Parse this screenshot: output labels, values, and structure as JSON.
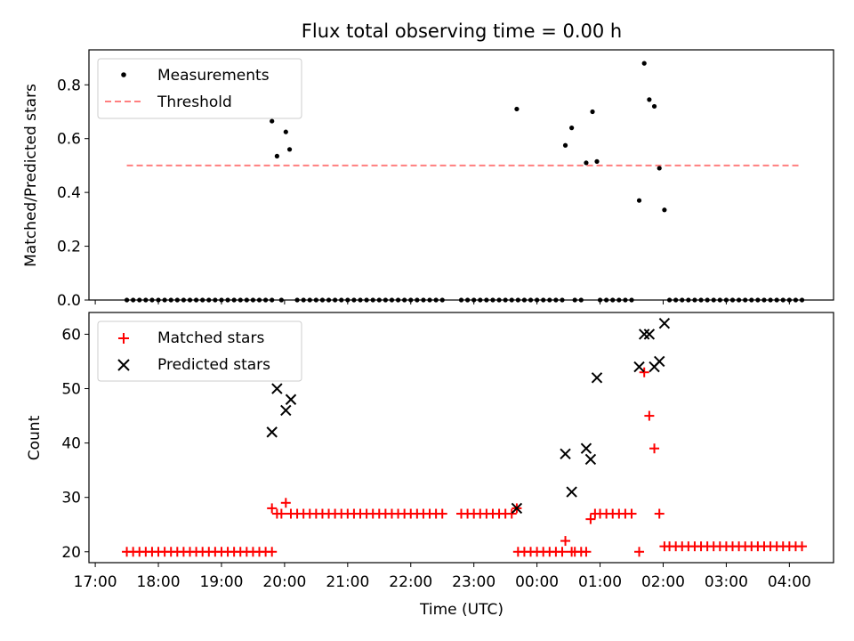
{
  "figure": {
    "title": "Flux total observing time = 0.00 h"
  },
  "chart_data": [
    {
      "type": "scatter",
      "title": "Flux total observing time = 0.00 h",
      "xlabel": "",
      "ylabel": "Matched/Predicted stars",
      "x_unit": "hours after 17:00 UTC",
      "xlim": [
        -0.1,
        11.7
      ],
      "ylim": [
        0.0,
        0.93
      ],
      "yticks": [
        "0.0",
        "0.2",
        "0.4",
        "0.6",
        "0.8"
      ],
      "grid": false,
      "legend_position": "upper-left",
      "threshold": {
        "name": "Threshold",
        "value": 0.5,
        "x_range": [
          0.5,
          11.2
        ],
        "color": "#ff7f7f"
      },
      "series": [
        {
          "name": "Measurements",
          "marker": "dot",
          "color": "#000000",
          "points": [
            [
              0.5,
              0
            ],
            [
              0.6,
              0
            ],
            [
              0.7,
              0
            ],
            [
              0.8,
              0
            ],
            [
              0.9,
              0
            ],
            [
              1.0,
              0
            ],
            [
              1.1,
              0
            ],
            [
              1.2,
              0
            ],
            [
              1.3,
              0
            ],
            [
              1.4,
              0
            ],
            [
              1.5,
              0
            ],
            [
              1.6,
              0
            ],
            [
              1.7,
              0
            ],
            [
              1.8,
              0
            ],
            [
              1.9,
              0
            ],
            [
              2.0,
              0
            ],
            [
              2.1,
              0
            ],
            [
              2.2,
              0
            ],
            [
              2.3,
              0
            ],
            [
              2.4,
              0
            ],
            [
              2.5,
              0
            ],
            [
              2.6,
              0
            ],
            [
              2.7,
              0
            ],
            [
              2.8,
              0
            ],
            [
              2.8,
              0.665
            ],
            [
              2.88,
              0.535
            ],
            [
              2.95,
              0
            ],
            [
              3.02,
              0.625
            ],
            [
              3.08,
              0.56
            ],
            [
              3.2,
              0
            ],
            [
              3.3,
              0
            ],
            [
              3.4,
              0
            ],
            [
              3.5,
              0
            ],
            [
              3.6,
              0
            ],
            [
              3.7,
              0
            ],
            [
              3.8,
              0
            ],
            [
              3.9,
              0
            ],
            [
              4.0,
              0
            ],
            [
              4.1,
              0
            ],
            [
              4.2,
              0
            ],
            [
              4.3,
              0
            ],
            [
              4.4,
              0
            ],
            [
              4.5,
              0
            ],
            [
              4.6,
              0
            ],
            [
              4.7,
              0
            ],
            [
              4.8,
              0
            ],
            [
              4.9,
              0
            ],
            [
              5.0,
              0
            ],
            [
              5.1,
              0
            ],
            [
              5.2,
              0
            ],
            [
              5.3,
              0
            ],
            [
              5.4,
              0
            ],
            [
              5.5,
              0
            ],
            [
              5.8,
              0
            ],
            [
              5.9,
              0
            ],
            [
              6.0,
              0
            ],
            [
              6.1,
              0
            ],
            [
              6.2,
              0
            ],
            [
              6.3,
              0
            ],
            [
              6.4,
              0
            ],
            [
              6.5,
              0
            ],
            [
              6.6,
              0
            ],
            [
              6.7,
              0
            ],
            [
              6.68,
              0.71
            ],
            [
              6.8,
              0
            ],
            [
              6.9,
              0
            ],
            [
              7.0,
              0
            ],
            [
              7.1,
              0
            ],
            [
              7.2,
              0
            ],
            [
              7.3,
              0
            ],
            [
              7.4,
              0
            ],
            [
              7.45,
              0.575
            ],
            [
              7.55,
              0.64
            ],
            [
              7.6,
              0
            ],
            [
              7.7,
              0
            ],
            [
              7.78,
              0.51
            ],
            [
              7.88,
              0.7
            ],
            [
              7.95,
              0.515
            ],
            [
              8.0,
              0
            ],
            [
              8.1,
              0
            ],
            [
              8.2,
              0
            ],
            [
              8.3,
              0
            ],
            [
              8.4,
              0
            ],
            [
              8.5,
              0
            ],
            [
              8.62,
              0.37
            ],
            [
              8.7,
              0.88
            ],
            [
              8.78,
              0.745
            ],
            [
              8.86,
              0.72
            ],
            [
              8.94,
              0.49
            ],
            [
              9.02,
              0.335
            ],
            [
              9.1,
              0
            ],
            [
              9.2,
              0
            ],
            [
              9.3,
              0
            ],
            [
              9.4,
              0
            ],
            [
              9.5,
              0
            ],
            [
              9.6,
              0
            ],
            [
              9.7,
              0
            ],
            [
              9.8,
              0
            ],
            [
              9.9,
              0
            ],
            [
              10.0,
              0
            ],
            [
              10.1,
              0
            ],
            [
              10.2,
              0
            ],
            [
              10.3,
              0
            ],
            [
              10.4,
              0
            ],
            [
              10.5,
              0
            ],
            [
              10.6,
              0
            ],
            [
              10.7,
              0
            ],
            [
              10.8,
              0
            ],
            [
              10.9,
              0
            ],
            [
              11.0,
              0
            ],
            [
              11.1,
              0
            ],
            [
              11.2,
              0
            ]
          ]
        }
      ]
    },
    {
      "type": "scatter",
      "title": "",
      "xlabel": "Time (UTC)",
      "ylabel": "Count",
      "x_unit": "hours after 17:00 UTC",
      "xlim": [
        -0.1,
        11.7
      ],
      "ylim": [
        18,
        64
      ],
      "yticks": [
        "20",
        "30",
        "40",
        "50",
        "60"
      ],
      "xticks": [
        "17:00",
        "18:00",
        "19:00",
        "20:00",
        "21:00",
        "22:00",
        "23:00",
        "00:00",
        "01:00",
        "02:00",
        "03:00",
        "04:00"
      ],
      "xtick_values": [
        0,
        1,
        2,
        3,
        4,
        5,
        6,
        7,
        8,
        9,
        10,
        11
      ],
      "grid": false,
      "legend_position": "upper-left",
      "series": [
        {
          "name": "Matched stars",
          "marker": "plus",
          "color": "#ff0000",
          "points": [
            [
              0.5,
              20
            ],
            [
              0.6,
              20
            ],
            [
              0.7,
              20
            ],
            [
              0.8,
              20
            ],
            [
              0.9,
              20
            ],
            [
              1.0,
              20
            ],
            [
              1.1,
              20
            ],
            [
              1.2,
              20
            ],
            [
              1.3,
              20
            ],
            [
              1.4,
              20
            ],
            [
              1.5,
              20
            ],
            [
              1.6,
              20
            ],
            [
              1.7,
              20
            ],
            [
              1.8,
              20
            ],
            [
              1.9,
              20
            ],
            [
              2.0,
              20
            ],
            [
              2.1,
              20
            ],
            [
              2.2,
              20
            ],
            [
              2.3,
              20
            ],
            [
              2.4,
              20
            ],
            [
              2.5,
              20
            ],
            [
              2.6,
              20
            ],
            [
              2.7,
              20
            ],
            [
              2.8,
              20
            ],
            [
              2.8,
              28
            ],
            [
              2.88,
              27
            ],
            [
              2.95,
              27
            ],
            [
              3.02,
              29
            ],
            [
              3.1,
              27
            ],
            [
              3.2,
              27
            ],
            [
              3.3,
              27
            ],
            [
              3.4,
              27
            ],
            [
              3.5,
              27
            ],
            [
              3.6,
              27
            ],
            [
              3.7,
              27
            ],
            [
              3.8,
              27
            ],
            [
              3.9,
              27
            ],
            [
              4.0,
              27
            ],
            [
              4.1,
              27
            ],
            [
              4.2,
              27
            ],
            [
              4.3,
              27
            ],
            [
              4.4,
              27
            ],
            [
              4.5,
              27
            ],
            [
              4.6,
              27
            ],
            [
              4.7,
              27
            ],
            [
              4.8,
              27
            ],
            [
              4.9,
              27
            ],
            [
              5.0,
              27
            ],
            [
              5.1,
              27
            ],
            [
              5.2,
              27
            ],
            [
              5.3,
              27
            ],
            [
              5.4,
              27
            ],
            [
              5.5,
              27
            ],
            [
              5.8,
              27
            ],
            [
              5.9,
              27
            ],
            [
              6.0,
              27
            ],
            [
              6.1,
              27
            ],
            [
              6.2,
              27
            ],
            [
              6.3,
              27
            ],
            [
              6.4,
              27
            ],
            [
              6.5,
              27
            ],
            [
              6.6,
              27
            ],
            [
              6.68,
              28
            ],
            [
              6.7,
              20
            ],
            [
              6.8,
              20
            ],
            [
              6.9,
              20
            ],
            [
              7.0,
              20
            ],
            [
              7.1,
              20
            ],
            [
              7.2,
              20
            ],
            [
              7.3,
              20
            ],
            [
              7.4,
              20
            ],
            [
              7.45,
              22
            ],
            [
              7.55,
              20
            ],
            [
              7.6,
              20
            ],
            [
              7.7,
              20
            ],
            [
              7.78,
              20
            ],
            [
              7.85,
              26
            ],
            [
              7.92,
              27
            ],
            [
              8.0,
              27
            ],
            [
              8.1,
              27
            ],
            [
              8.2,
              27
            ],
            [
              8.3,
              27
            ],
            [
              8.4,
              27
            ],
            [
              8.5,
              27
            ],
            [
              8.62,
              20
            ],
            [
              8.7,
              53
            ],
            [
              8.78,
              45
            ],
            [
              8.86,
              39
            ],
            [
              8.94,
              27
            ],
            [
              9.02,
              21
            ],
            [
              9.1,
              21
            ],
            [
              9.2,
              21
            ],
            [
              9.3,
              21
            ],
            [
              9.4,
              21
            ],
            [
              9.5,
              21
            ],
            [
              9.6,
              21
            ],
            [
              9.7,
              21
            ],
            [
              9.8,
              21
            ],
            [
              9.9,
              21
            ],
            [
              10.0,
              21
            ],
            [
              10.1,
              21
            ],
            [
              10.2,
              21
            ],
            [
              10.3,
              21
            ],
            [
              10.4,
              21
            ],
            [
              10.5,
              21
            ],
            [
              10.6,
              21
            ],
            [
              10.7,
              21
            ],
            [
              10.8,
              21
            ],
            [
              10.9,
              21
            ],
            [
              11.0,
              21
            ],
            [
              11.1,
              21
            ],
            [
              11.2,
              21
            ]
          ]
        },
        {
          "name": "Predicted stars",
          "marker": "x",
          "color": "#000000",
          "points": [
            [
              2.8,
              42
            ],
            [
              2.88,
              50
            ],
            [
              3.02,
              46
            ],
            [
              3.1,
              48
            ],
            [
              6.68,
              28
            ],
            [
              7.45,
              38
            ],
            [
              7.55,
              31
            ],
            [
              7.78,
              39
            ],
            [
              7.85,
              37
            ],
            [
              7.95,
              52
            ],
            [
              8.62,
              54
            ],
            [
              8.7,
              60
            ],
            [
              8.78,
              60
            ],
            [
              8.86,
              54
            ],
            [
              8.94,
              55
            ],
            [
              9.02,
              62
            ]
          ]
        }
      ]
    }
  ]
}
